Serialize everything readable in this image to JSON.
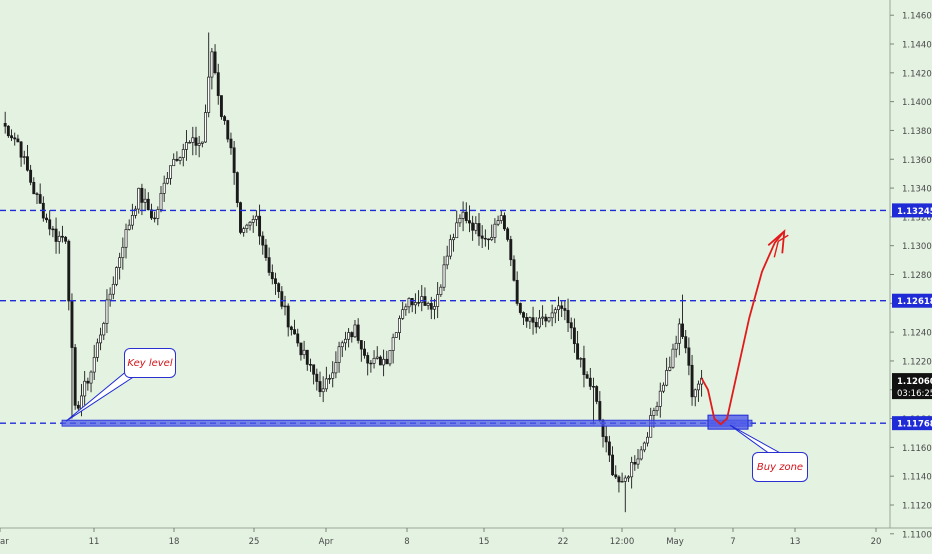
{
  "chart_data": {
    "type": "candlestick",
    "instrument_note": "",
    "y_ticks": [
      "1.14600",
      "1.14400",
      "1.14200",
      "1.14000",
      "1.13800",
      "1.13600",
      "1.13400",
      "1.13200",
      "1.13000",
      "1.12800",
      "1.12600",
      "1.12400",
      "1.12200",
      "1.12000",
      "1.11800",
      "1.11600",
      "1.11400",
      "1.11200",
      "1.11000"
    ],
    "x_ticks": [
      "ar",
      "11",
      "18",
      "25",
      "Apr",
      "8",
      "15",
      "22",
      "12:00",
      "May",
      "7",
      "13",
      "20"
    ],
    "ylim": [
      1.1095,
      1.1465
    ],
    "grid": false,
    "levels": [
      {
        "label": "1.13245",
        "value": 1.13245
      },
      {
        "label": "1.12618",
        "value": 1.12618
      },
      {
        "label": "1.11768",
        "value": 1.11768
      }
    ],
    "current_price": {
      "label": "1.12060",
      "value": 1.1206,
      "countdown": "03:16:25"
    },
    "close_path": [
      {
        "x": 0,
        "y": 1.1385
      },
      {
        "x": 5,
        "y": 1.1372
      },
      {
        "x": 10,
        "y": 1.1338
      },
      {
        "x": 14,
        "y": 1.1318
      },
      {
        "x": 17,
        "y": 1.1306
      },
      {
        "x": 20,
        "y": 1.1306
      },
      {
        "x": 23,
        "y": 1.1185
      },
      {
        "x": 28,
        "y": 1.1213
      },
      {
        "x": 33,
        "y": 1.1258
      },
      {
        "x": 38,
        "y": 1.1302
      },
      {
        "x": 43,
        "y": 1.1336
      },
      {
        "x": 48,
        "y": 1.1318
      },
      {
        "x": 53,
        "y": 1.1358
      },
      {
        "x": 58,
        "y": 1.137
      },
      {
        "x": 63,
        "y": 1.1372
      },
      {
        "x": 66,
        "y": 1.1435
      },
      {
        "x": 69,
        "y": 1.1392
      },
      {
        "x": 72,
        "y": 1.137
      },
      {
        "x": 75,
        "y": 1.1305
      },
      {
        "x": 80,
        "y": 1.132
      },
      {
        "x": 84,
        "y": 1.1284
      },
      {
        "x": 90,
        "y": 1.1248
      },
      {
        "x": 96,
        "y": 1.1218
      },
      {
        "x": 101,
        "y": 1.1198
      },
      {
        "x": 106,
        "y": 1.1228
      },
      {
        "x": 111,
        "y": 1.1242
      },
      {
        "x": 116,
        "y": 1.1218
      },
      {
        "x": 121,
        "y": 1.1222
      },
      {
        "x": 126,
        "y": 1.1258
      },
      {
        "x": 131,
        "y": 1.1265
      },
      {
        "x": 136,
        "y": 1.1258
      },
      {
        "x": 141,
        "y": 1.1302
      },
      {
        "x": 145,
        "y": 1.1322
      },
      {
        "x": 149,
        "y": 1.1312
      },
      {
        "x": 153,
        "y": 1.1306
      },
      {
        "x": 157,
        "y": 1.1322
      },
      {
        "x": 160,
        "y": 1.129
      },
      {
        "x": 163,
        "y": 1.125
      },
      {
        "x": 168,
        "y": 1.1244
      },
      {
        "x": 172,
        "y": 1.125
      },
      {
        "x": 176,
        "y": 1.1256
      },
      {
        "x": 179,
        "y": 1.124
      },
      {
        "x": 183,
        "y": 1.121
      },
      {
        "x": 186,
        "y": 1.12
      },
      {
        "x": 189,
        "y": 1.1168
      },
      {
        "x": 192,
        "y": 1.1145
      },
      {
        "x": 195,
        "y": 1.1132
      },
      {
        "x": 198,
        "y": 1.1148
      },
      {
        "x": 201,
        "y": 1.1158
      },
      {
        "x": 204,
        "y": 1.1178
      },
      {
        "x": 207,
        "y": 1.12
      },
      {
        "x": 210,
        "y": 1.1218
      },
      {
        "x": 213,
        "y": 1.1242
      },
      {
        "x": 215,
        "y": 1.123
      },
      {
        "x": 217,
        "y": 1.1198
      },
      {
        "x": 220,
        "y": 1.1208
      }
    ],
    "projection_path": [
      {
        "x": 220,
        "y": 1.1208
      },
      {
        "x": 222,
        "y": 1.12
      },
      {
        "x": 224,
        "y": 1.118
      },
      {
        "x": 226,
        "y": 1.1176
      },
      {
        "x": 228,
        "y": 1.118
      },
      {
        "x": 231,
        "y": 1.121
      },
      {
        "x": 235,
        "y": 1.125
      },
      {
        "x": 239,
        "y": 1.1282
      },
      {
        "x": 243,
        "y": 1.1302
      },
      {
        "x": 246,
        "y": 1.131
      }
    ],
    "annotations": [
      {
        "name": "key-level",
        "text": "Key level"
      },
      {
        "name": "buy-zone",
        "text": "Buy zone"
      }
    ]
  },
  "colors": {
    "background": "#e4f2e1",
    "candle": "#1a1a1a",
    "level_line": "#1f2bd6",
    "level_label_bg": "#1f2bd6",
    "zone_fill": "#4f5be8",
    "projection": "#e11b1b",
    "callout_text": "#d4141a",
    "price_label_bg": "#111111",
    "axis_text": "#4a4a4a"
  }
}
